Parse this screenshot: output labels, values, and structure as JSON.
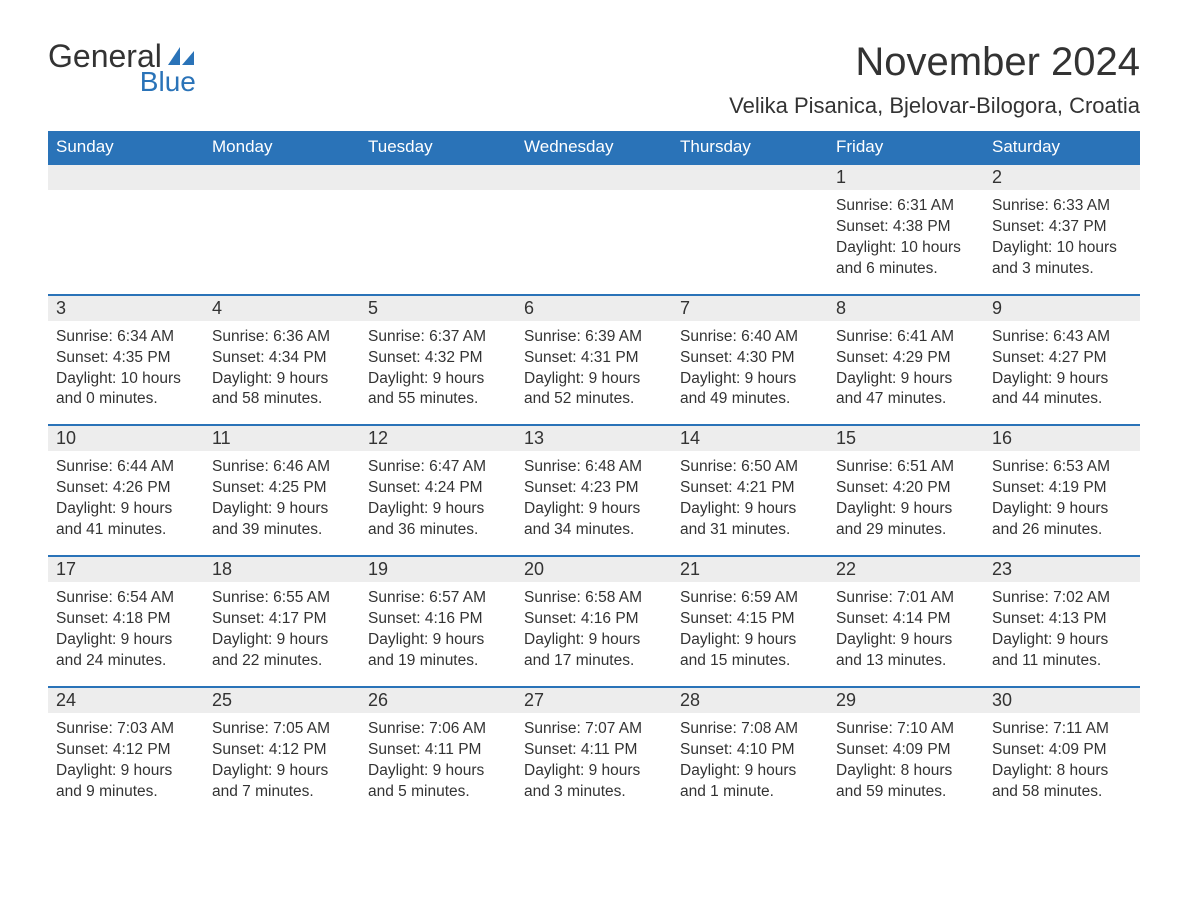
{
  "logo": {
    "text1": "General",
    "text2": "Blue"
  },
  "title": "November 2024",
  "location": "Velika Pisanica, Bjelovar-Bilogora, Croatia",
  "colors": {
    "header_bg": "#2a73b8",
    "header_text": "#ffffff",
    "daynum_bg": "#ededed",
    "accent": "#2a73b8",
    "body_text": "#333333",
    "page_bg": "#ffffff"
  },
  "weekdays": [
    "Sunday",
    "Monday",
    "Tuesday",
    "Wednesday",
    "Thursday",
    "Friday",
    "Saturday"
  ],
  "weeks": [
    [
      {
        "blank": true
      },
      {
        "blank": true
      },
      {
        "blank": true
      },
      {
        "blank": true
      },
      {
        "blank": true
      },
      {
        "day": "1",
        "sunrise": "Sunrise: 6:31 AM",
        "sunset": "Sunset: 4:38 PM",
        "daylight1": "Daylight: 10 hours",
        "daylight2": "and 6 minutes."
      },
      {
        "day": "2",
        "sunrise": "Sunrise: 6:33 AM",
        "sunset": "Sunset: 4:37 PM",
        "daylight1": "Daylight: 10 hours",
        "daylight2": "and 3 minutes."
      }
    ],
    [
      {
        "day": "3",
        "sunrise": "Sunrise: 6:34 AM",
        "sunset": "Sunset: 4:35 PM",
        "daylight1": "Daylight: 10 hours",
        "daylight2": "and 0 minutes."
      },
      {
        "day": "4",
        "sunrise": "Sunrise: 6:36 AM",
        "sunset": "Sunset: 4:34 PM",
        "daylight1": "Daylight: 9 hours",
        "daylight2": "and 58 minutes."
      },
      {
        "day": "5",
        "sunrise": "Sunrise: 6:37 AM",
        "sunset": "Sunset: 4:32 PM",
        "daylight1": "Daylight: 9 hours",
        "daylight2": "and 55 minutes."
      },
      {
        "day": "6",
        "sunrise": "Sunrise: 6:39 AM",
        "sunset": "Sunset: 4:31 PM",
        "daylight1": "Daylight: 9 hours",
        "daylight2": "and 52 minutes."
      },
      {
        "day": "7",
        "sunrise": "Sunrise: 6:40 AM",
        "sunset": "Sunset: 4:30 PM",
        "daylight1": "Daylight: 9 hours",
        "daylight2": "and 49 minutes."
      },
      {
        "day": "8",
        "sunrise": "Sunrise: 6:41 AM",
        "sunset": "Sunset: 4:29 PM",
        "daylight1": "Daylight: 9 hours",
        "daylight2": "and 47 minutes."
      },
      {
        "day": "9",
        "sunrise": "Sunrise: 6:43 AM",
        "sunset": "Sunset: 4:27 PM",
        "daylight1": "Daylight: 9 hours",
        "daylight2": "and 44 minutes."
      }
    ],
    [
      {
        "day": "10",
        "sunrise": "Sunrise: 6:44 AM",
        "sunset": "Sunset: 4:26 PM",
        "daylight1": "Daylight: 9 hours",
        "daylight2": "and 41 minutes."
      },
      {
        "day": "11",
        "sunrise": "Sunrise: 6:46 AM",
        "sunset": "Sunset: 4:25 PM",
        "daylight1": "Daylight: 9 hours",
        "daylight2": "and 39 minutes."
      },
      {
        "day": "12",
        "sunrise": "Sunrise: 6:47 AM",
        "sunset": "Sunset: 4:24 PM",
        "daylight1": "Daylight: 9 hours",
        "daylight2": "and 36 minutes."
      },
      {
        "day": "13",
        "sunrise": "Sunrise: 6:48 AM",
        "sunset": "Sunset: 4:23 PM",
        "daylight1": "Daylight: 9 hours",
        "daylight2": "and 34 minutes."
      },
      {
        "day": "14",
        "sunrise": "Sunrise: 6:50 AM",
        "sunset": "Sunset: 4:21 PM",
        "daylight1": "Daylight: 9 hours",
        "daylight2": "and 31 minutes."
      },
      {
        "day": "15",
        "sunrise": "Sunrise: 6:51 AM",
        "sunset": "Sunset: 4:20 PM",
        "daylight1": "Daylight: 9 hours",
        "daylight2": "and 29 minutes."
      },
      {
        "day": "16",
        "sunrise": "Sunrise: 6:53 AM",
        "sunset": "Sunset: 4:19 PM",
        "daylight1": "Daylight: 9 hours",
        "daylight2": "and 26 minutes."
      }
    ],
    [
      {
        "day": "17",
        "sunrise": "Sunrise: 6:54 AM",
        "sunset": "Sunset: 4:18 PM",
        "daylight1": "Daylight: 9 hours",
        "daylight2": "and 24 minutes."
      },
      {
        "day": "18",
        "sunrise": "Sunrise: 6:55 AM",
        "sunset": "Sunset: 4:17 PM",
        "daylight1": "Daylight: 9 hours",
        "daylight2": "and 22 minutes."
      },
      {
        "day": "19",
        "sunrise": "Sunrise: 6:57 AM",
        "sunset": "Sunset: 4:16 PM",
        "daylight1": "Daylight: 9 hours",
        "daylight2": "and 19 minutes."
      },
      {
        "day": "20",
        "sunrise": "Sunrise: 6:58 AM",
        "sunset": "Sunset: 4:16 PM",
        "daylight1": "Daylight: 9 hours",
        "daylight2": "and 17 minutes."
      },
      {
        "day": "21",
        "sunrise": "Sunrise: 6:59 AM",
        "sunset": "Sunset: 4:15 PM",
        "daylight1": "Daylight: 9 hours",
        "daylight2": "and 15 minutes."
      },
      {
        "day": "22",
        "sunrise": "Sunrise: 7:01 AM",
        "sunset": "Sunset: 4:14 PM",
        "daylight1": "Daylight: 9 hours",
        "daylight2": "and 13 minutes."
      },
      {
        "day": "23",
        "sunrise": "Sunrise: 7:02 AM",
        "sunset": "Sunset: 4:13 PM",
        "daylight1": "Daylight: 9 hours",
        "daylight2": "and 11 minutes."
      }
    ],
    [
      {
        "day": "24",
        "sunrise": "Sunrise: 7:03 AM",
        "sunset": "Sunset: 4:12 PM",
        "daylight1": "Daylight: 9 hours",
        "daylight2": "and 9 minutes."
      },
      {
        "day": "25",
        "sunrise": "Sunrise: 7:05 AM",
        "sunset": "Sunset: 4:12 PM",
        "daylight1": "Daylight: 9 hours",
        "daylight2": "and 7 minutes."
      },
      {
        "day": "26",
        "sunrise": "Sunrise: 7:06 AM",
        "sunset": "Sunset: 4:11 PM",
        "daylight1": "Daylight: 9 hours",
        "daylight2": "and 5 minutes."
      },
      {
        "day": "27",
        "sunrise": "Sunrise: 7:07 AM",
        "sunset": "Sunset: 4:11 PM",
        "daylight1": "Daylight: 9 hours",
        "daylight2": "and 3 minutes."
      },
      {
        "day": "28",
        "sunrise": "Sunrise: 7:08 AM",
        "sunset": "Sunset: 4:10 PM",
        "daylight1": "Daylight: 9 hours",
        "daylight2": "and 1 minute."
      },
      {
        "day": "29",
        "sunrise": "Sunrise: 7:10 AM",
        "sunset": "Sunset: 4:09 PM",
        "daylight1": "Daylight: 8 hours",
        "daylight2": "and 59 minutes."
      },
      {
        "day": "30",
        "sunrise": "Sunrise: 7:11 AM",
        "sunset": "Sunset: 4:09 PM",
        "daylight1": "Daylight: 8 hours",
        "daylight2": "and 58 minutes."
      }
    ]
  ]
}
